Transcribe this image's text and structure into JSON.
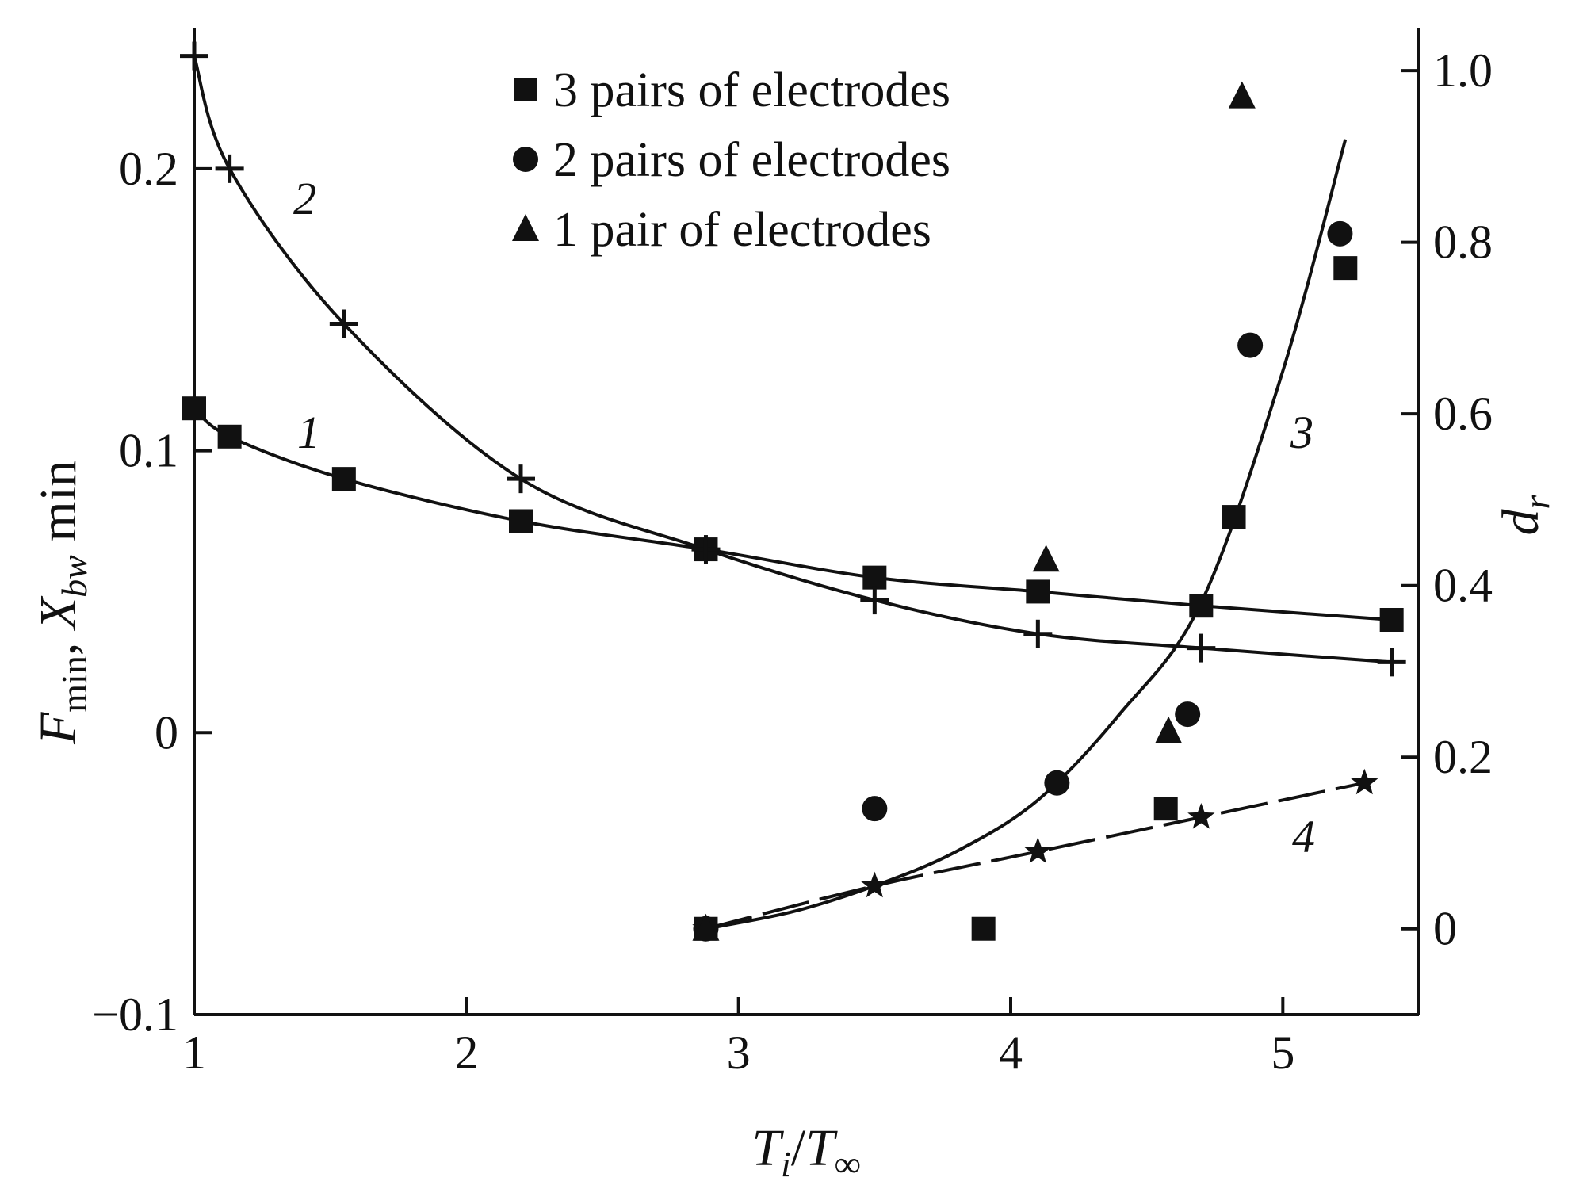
{
  "chart_data": {
    "type": "line",
    "x_axis": {
      "label_main": "T",
      "label_sub": "i",
      "label_sep": "/",
      "label_main2": "T",
      "label_sub2": "∞",
      "range": [
        1,
        5.5
      ],
      "ticks": [
        1,
        2,
        3,
        4,
        5
      ],
      "tick_labels": [
        "1",
        "2",
        "3",
        "4",
        "5"
      ]
    },
    "y_left_axis": {
      "label_parts": [
        {
          "text": "F",
          "italic": true,
          "sub": false
        },
        {
          "text": "min",
          "italic": false,
          "sub": true
        },
        {
          "text": ", ",
          "italic": false,
          "sub": false
        },
        {
          "text": "X",
          "italic": true,
          "sub": false
        },
        {
          "text": "bw",
          "italic": true,
          "sub": true
        },
        {
          "text": " min",
          "italic": false,
          "sub": false
        }
      ],
      "range": [
        -0.1,
        0.25
      ],
      "ticks": [
        -0.1,
        0,
        0.1,
        0.2
      ],
      "tick_labels": [
        "−0.1",
        "0",
        "0.1",
        "0.2"
      ]
    },
    "y_right_axis": {
      "label_main": "d",
      "label_sub": "r",
      "range": [
        -0.1,
        1.05
      ],
      "ticks": [
        0,
        0.2,
        0.4,
        0.6,
        0.8,
        1.0
      ],
      "tick_labels": [
        "0",
        "0.2",
        "0.4",
        "0.6",
        "0.8",
        "1.0"
      ]
    },
    "legend": {
      "placement": "top-center",
      "entries": [
        {
          "marker": "square",
          "label": "3 pairs of electrodes"
        },
        {
          "marker": "circle",
          "label": "2 pairs of electrodes"
        },
        {
          "marker": "triangle",
          "label": "1 pair of electrodes"
        }
      ]
    },
    "curves": [
      {
        "label": "1",
        "axis": "left",
        "marker": "square",
        "x": [
          1.0,
          1.13,
          1.55,
          2.2,
          2.88,
          3.5,
          4.1,
          4.7,
          5.4
        ],
        "y": [
          0.115,
          0.105,
          0.09,
          0.075,
          0.065,
          0.055,
          0.05,
          0.045,
          0.04
        ]
      },
      {
        "label": "2",
        "axis": "left",
        "marker": "cross",
        "x": [
          1.0,
          1.13,
          1.55,
          2.2,
          2.88,
          3.5,
          4.1,
          4.7,
          5.4
        ],
        "y": [
          0.24,
          0.2,
          0.145,
          0.09,
          0.065,
          0.047,
          0.035,
          0.03,
          0.025
        ]
      },
      {
        "label": "3",
        "axis": "right",
        "marker": "none",
        "x": [
          2.88,
          3.2,
          3.5,
          3.8,
          4.1,
          4.4,
          4.7,
          5.0,
          5.23
        ],
        "y": [
          0.0,
          0.02,
          0.05,
          0.09,
          0.15,
          0.25,
          0.38,
          0.65,
          0.92
        ]
      },
      {
        "label": "4",
        "axis": "right",
        "marker": "star",
        "dashed": true,
        "x": [
          2.88,
          3.5,
          4.1,
          4.7,
          5.3
        ],
        "y": [
          0.0,
          0.05,
          0.09,
          0.13,
          0.17
        ]
      }
    ],
    "scatter": [
      {
        "name": "3 pairs of electrodes",
        "axis": "right",
        "marker": "square",
        "x": [
          2.88,
          3.9,
          4.57,
          4.82,
          5.23
        ],
        "y": [
          0.0,
          0.0,
          0.14,
          0.48,
          0.77
        ]
      },
      {
        "name": "2 pairs of electrodes",
        "axis": "right",
        "marker": "circle",
        "x": [
          2.88,
          3.5,
          4.17,
          4.65,
          4.88,
          5.21
        ],
        "y": [
          0.0,
          0.14,
          0.17,
          0.25,
          0.68,
          0.81
        ]
      },
      {
        "name": "1 pair of electrodes",
        "axis": "right",
        "marker": "triangle",
        "x": [
          2.88,
          4.13,
          4.58,
          4.85
        ],
        "y": [
          0.0,
          0.43,
          0.23,
          0.97
        ]
      }
    ],
    "grid": false
  }
}
